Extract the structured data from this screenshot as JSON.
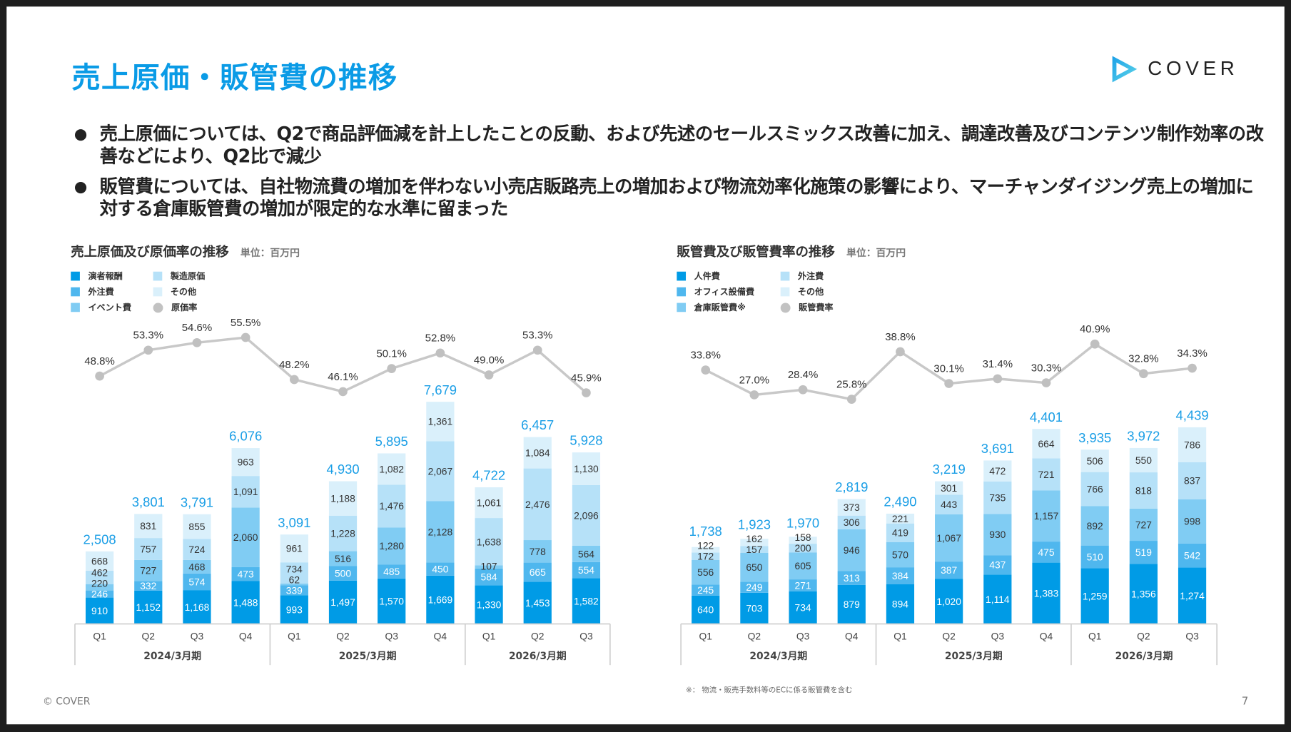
{
  "header": {
    "title": "売上原価・販管費の推移",
    "logo_text": "COVER",
    "brand_color": "#0a9be6"
  },
  "bullets": [
    "売上原価については、Q2で商品評価減を計上したことの反動、および先述のセールスミックス改善に加え、調達改善及びコンテンツ制作効率の改善などにより、Q2比で減少",
    "販管費については、自社物流費の増加を伴わない小売店販路売上の増加および物流効率化施策の影響により、マーチャンダイジング売上の増加に対する倉庫販管費の増加が限定的な水準に留まった"
  ],
  "footer": {
    "copyright": "© COVER",
    "page_number": "7",
    "footnote": "※： 物流・販売手数料等のECに係る販管費を含む"
  },
  "chart_data": [
    {
      "type": "bar",
      "stacked": true,
      "title": "売上原価及び原価率の推移",
      "unit": "単位：百万円",
      "categories": [
        "Q1",
        "Q2",
        "Q3",
        "Q4",
        "Q1",
        "Q2",
        "Q3",
        "Q4",
        "Q1",
        "Q2",
        "Q3"
      ],
      "groups": [
        {
          "label": "2024/3月期",
          "count": 4
        },
        {
          "label": "2025/3月期",
          "count": 4
        },
        {
          "label": "2026/3月期",
          "count": 3
        }
      ],
      "series": [
        {
          "name": "演者報酬",
          "color": "#009be6",
          "values": [
            910,
            1152,
            1168,
            1488,
            993,
            1497,
            1570,
            1669,
            1330,
            1453,
            1582
          ]
        },
        {
          "name": "外注費",
          "color": "#4fb7ee",
          "values": [
            246,
            332,
            574,
            473,
            339,
            500,
            485,
            450,
            584,
            665,
            554
          ]
        },
        {
          "name": "イベント費",
          "color": "#80ccf3",
          "values": [
            220,
            727,
            468,
            2060,
            62,
            516,
            1280,
            2128,
            107,
            778,
            564
          ]
        },
        {
          "name": "製造原価",
          "color": "#b6e1f8",
          "values": [
            462,
            757,
            724,
            1091,
            734,
            1228,
            1476,
            2067,
            1638,
            2476,
            2096
          ]
        },
        {
          "name": "その他",
          "color": "#daf0fb",
          "values": [
            668,
            831,
            855,
            963,
            961,
            1188,
            1082,
            1361,
            1061,
            1084,
            1130
          ]
        }
      ],
      "totals": [
        "2,508",
        "3,801",
        "3,791",
        "6,076",
        "3,091",
        "4,930",
        "5,895",
        "7,679",
        "4,722",
        "6,457",
        "5,928"
      ],
      "total_values": [
        2508,
        3801,
        3791,
        6076,
        3091,
        4930,
        5895,
        7679,
        4722,
        6457,
        5928
      ],
      "rate": {
        "name": "原価率",
        "color": "#bdbdbd",
        "values": [
          48.8,
          53.3,
          54.6,
          55.5,
          48.2,
          46.1,
          50.1,
          52.8,
          49.0,
          53.3,
          45.9
        ],
        "labels": [
          "48.8%",
          "53.3%",
          "54.6%",
          "55.5%",
          "48.2%",
          "46.1%",
          "50.1%",
          "52.8%",
          "49.0%",
          "53.3%",
          "45.9%"
        ]
      },
      "legend_placement": "top-left",
      "grid": false
    },
    {
      "type": "bar",
      "stacked": true,
      "title": "販管費及び販管費率の推移",
      "unit": "単位：百万円",
      "categories": [
        "Q1",
        "Q2",
        "Q3",
        "Q4",
        "Q1",
        "Q2",
        "Q3",
        "Q4",
        "Q1",
        "Q2",
        "Q3"
      ],
      "groups": [
        {
          "label": "2024/3月期",
          "count": 4
        },
        {
          "label": "2025/3月期",
          "count": 4
        },
        {
          "label": "2026/3月期",
          "count": 3
        }
      ],
      "series": [
        {
          "name": "人件費",
          "color": "#009be6",
          "values": [
            640,
            703,
            734,
            879,
            894,
            1020,
            1114,
            1383,
            1259,
            1356,
            1274
          ]
        },
        {
          "name": "オフィス設備費",
          "color": "#4fb7ee",
          "values": [
            245,
            249,
            271,
            313,
            384,
            387,
            437,
            475,
            510,
            519,
            542
          ]
        },
        {
          "name": "倉庫販管費※",
          "color": "#80ccf3",
          "values": [
            556,
            650,
            605,
            946,
            570,
            1067,
            930,
            1157,
            892,
            727,
            998
          ]
        },
        {
          "name": "外注費",
          "color": "#b6e1f8",
          "values": [
            172,
            157,
            200,
            306,
            419,
            443,
            735,
            721,
            766,
            818,
            837
          ]
        },
        {
          "name": "その他",
          "color": "#daf0fb",
          "values": [
            122,
            162,
            158,
            373,
            221,
            301,
            472,
            664,
            506,
            550,
            786
          ]
        }
      ],
      "totals": [
        "1,738",
        "1,923",
        "1,970",
        "2,819",
        "2,490",
        "3,219",
        "3,691",
        "4,401",
        "3,935",
        "3,972",
        "4,439"
      ],
      "total_values": [
        1738,
        1923,
        1970,
        2819,
        2490,
        3219,
        3691,
        4401,
        3935,
        3972,
        4439
      ],
      "rate": {
        "name": "販管費率",
        "color": "#bdbdbd",
        "values": [
          33.8,
          27.0,
          28.4,
          25.8,
          38.8,
          30.1,
          31.4,
          30.3,
          40.9,
          32.8,
          34.3
        ],
        "labels": [
          "33.8%",
          "27.0%",
          "28.4%",
          "25.8%",
          "38.8%",
          "30.1%",
          "31.4%",
          "30.3%",
          "40.9%",
          "32.8%",
          "34.3%"
        ]
      },
      "legend_placement": "top-left",
      "grid": false
    }
  ]
}
